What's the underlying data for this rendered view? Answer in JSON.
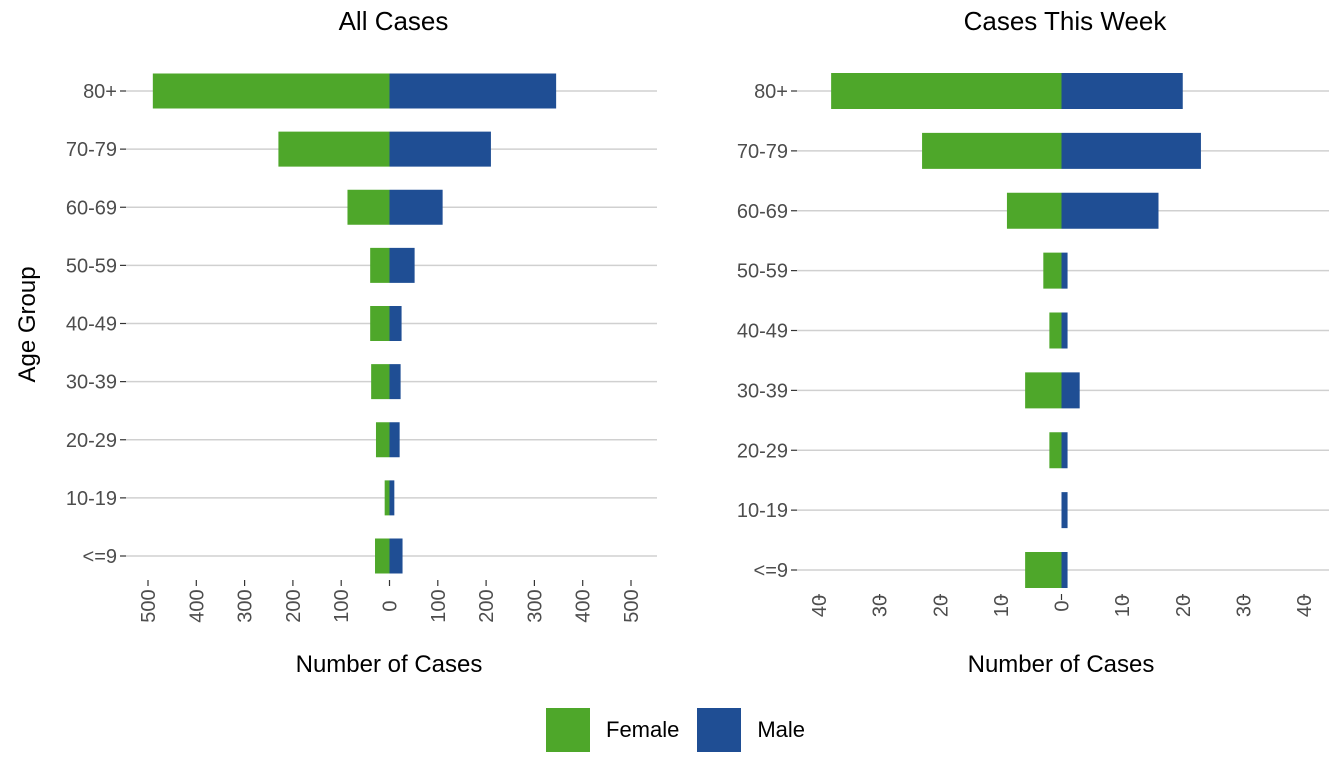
{
  "colors": {
    "female": "#4ea72a",
    "male": "#1f4e94",
    "grid": "#d0d0d0",
    "axis_text": "#4d4d4d"
  },
  "legend": {
    "female_label": "Female",
    "male_label": "Male"
  },
  "chart_data": [
    {
      "type": "bar",
      "orientation": "horizontal",
      "layout": "population-pyramid",
      "title": "All Cases",
      "xlabel": "Number of Cases",
      "ylabel": "Age Group",
      "categories": [
        "80+",
        "70-79",
        "60-69",
        "50-59",
        "40-49",
        "30-39",
        "20-29",
        "10-19",
        "<=9"
      ],
      "xlim": [
        -500,
        500
      ],
      "x_ticks": [
        -500,
        -400,
        -300,
        -200,
        -100,
        0,
        100,
        200,
        300,
        400,
        500
      ],
      "x_tick_labels": [
        "500",
        "400",
        "300",
        "200",
        "100",
        "0",
        "100",
        "200",
        "300",
        "400",
        "500"
      ],
      "series": [
        {
          "name": "Female",
          "values": [
            490,
            230,
            87,
            40,
            40,
            38,
            28,
            10,
            30
          ]
        },
        {
          "name": "Male",
          "values": [
            345,
            210,
            110,
            52,
            25,
            23,
            21,
            10,
            27
          ]
        }
      ],
      "grid": "horizontal",
      "legend_position": "bottom"
    },
    {
      "type": "bar",
      "orientation": "horizontal",
      "layout": "population-pyramid",
      "title": "Cases This Week",
      "xlabel": "Number of Cases",
      "ylabel": "",
      "categories": [
        "80+",
        "70-79",
        "60-69",
        "50-59",
        "40-49",
        "30-39",
        "20-29",
        "10-19",
        "<=9"
      ],
      "xlim": [
        -40,
        40
      ],
      "x_ticks": [
        -40,
        -30,
        -20,
        -10,
        0,
        10,
        20,
        30,
        40
      ],
      "x_tick_labels": [
        "40",
        "30",
        "20",
        "10",
        "0",
        "10",
        "20",
        "30",
        "40"
      ],
      "series": [
        {
          "name": "Female",
          "values": [
            38,
            23,
            9,
            3,
            2,
            6,
            2,
            0,
            6
          ]
        },
        {
          "name": "Male",
          "values": [
            20,
            23,
            16,
            1,
            1,
            3,
            1,
            1,
            1
          ]
        }
      ],
      "grid": "horizontal",
      "legend_position": "bottom"
    }
  ]
}
